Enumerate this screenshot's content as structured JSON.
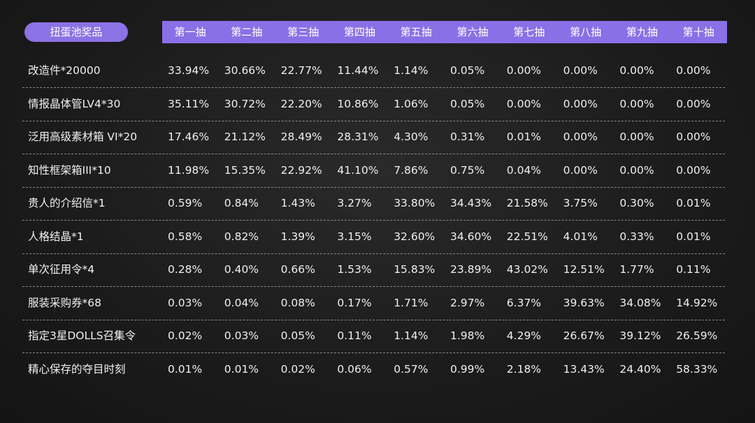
{
  "table": {
    "corner": "扭蛋池奖品",
    "columns": [
      "第一抽",
      "第二抽",
      "第三抽",
      "第四抽",
      "第五抽",
      "第六抽",
      "第七抽",
      "第八抽",
      "第九抽",
      "第十抽"
    ],
    "rows": [
      [
        "改造件*20000",
        "33.94%",
        "30.66%",
        "22.77%",
        "11.44%",
        "1.14%",
        "0.05%",
        "0.00%",
        "0.00%",
        "0.00%",
        "0.00%"
      ],
      [
        "情报晶体管LV4*30",
        "35.11%",
        "30.72%",
        "22.20%",
        "10.86%",
        "1.06%",
        "0.05%",
        "0.00%",
        "0.00%",
        "0.00%",
        "0.00%"
      ],
      [
        "泛用高级素材箱 VI*20",
        "17.46%",
        "21.12%",
        "28.49%",
        "28.31%",
        "4.30%",
        "0.31%",
        "0.01%",
        "0.00%",
        "0.00%",
        "0.00%"
      ],
      [
        "知性框架箱III*10",
        "11.98%",
        "15.35%",
        "22.92%",
        "41.10%",
        "7.86%",
        "0.75%",
        "0.04%",
        "0.00%",
        "0.00%",
        "0.00%"
      ],
      [
        "贵人的介绍信*1",
        "0.59%",
        "0.84%",
        "1.43%",
        "3.27%",
        "33.80%",
        "34.43%",
        "21.58%",
        "3.75%",
        "0.30%",
        "0.01%"
      ],
      [
        "人格结晶*1",
        "0.58%",
        "0.82%",
        "1.39%",
        "3.15%",
        "32.60%",
        "34.60%",
        "22.51%",
        "4.01%",
        "0.33%",
        "0.01%"
      ],
      [
        "单次征用令*4",
        "0.28%",
        "0.40%",
        "0.66%",
        "1.53%",
        "15.83%",
        "23.89%",
        "43.02%",
        "12.51%",
        "1.77%",
        "0.11%"
      ],
      [
        "服装采购券*68",
        "0.03%",
        "0.04%",
        "0.08%",
        "0.17%",
        "1.71%",
        "2.97%",
        "6.37%",
        "39.63%",
        "34.08%",
        "14.92%"
      ],
      [
        "指定3星DOLLS召集令",
        "0.02%",
        "0.03%",
        "0.05%",
        "0.11%",
        "1.14%",
        "1.98%",
        "4.29%",
        "26.67%",
        "39.12%",
        "26.59%"
      ],
      [
        "精心保存的夺目时刻",
        "0.01%",
        "0.01%",
        "0.02%",
        "0.06%",
        "0.57%",
        "0.99%",
        "2.18%",
        "13.43%",
        "24.40%",
        "58.33%"
      ]
    ]
  }
}
